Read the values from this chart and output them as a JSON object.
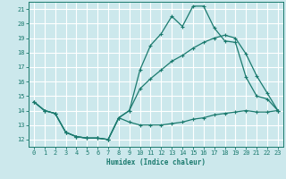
{
  "xlabel": "Humidex (Indice chaleur)",
  "bg_color": "#cce8ec",
  "grid_color": "#ffffff",
  "line_color": "#1a7a6e",
  "xlim": [
    -0.5,
    23.5
  ],
  "ylim": [
    11.5,
    21.5
  ],
  "xticks": [
    0,
    1,
    2,
    3,
    4,
    5,
    6,
    7,
    8,
    9,
    10,
    11,
    12,
    13,
    14,
    15,
    16,
    17,
    18,
    19,
    20,
    21,
    22,
    23
  ],
  "yticks": [
    12,
    13,
    14,
    15,
    16,
    17,
    18,
    19,
    20,
    21
  ],
  "line1_x": [
    0,
    1,
    2,
    3,
    4,
    5,
    6,
    7,
    8,
    9,
    10,
    11,
    12,
    13,
    14,
    15,
    16,
    17,
    18,
    19,
    20,
    21,
    22,
    23
  ],
  "line1_y": [
    14.6,
    14.0,
    13.8,
    12.5,
    12.2,
    12.1,
    12.1,
    12.0,
    13.5,
    13.2,
    13.0,
    13.0,
    13.0,
    13.1,
    13.2,
    13.4,
    13.5,
    13.7,
    13.8,
    13.9,
    14.0,
    13.9,
    13.9,
    14.0
  ],
  "line2_x": [
    0,
    1,
    2,
    3,
    4,
    5,
    6,
    7,
    8,
    9,
    10,
    11,
    12,
    13,
    14,
    15,
    16,
    17,
    18,
    19,
    20,
    21,
    22,
    23
  ],
  "line2_y": [
    14.6,
    14.0,
    13.8,
    12.5,
    12.2,
    12.1,
    12.1,
    12.0,
    13.5,
    14.0,
    16.8,
    18.5,
    19.3,
    20.5,
    19.8,
    21.2,
    21.2,
    19.7,
    18.8,
    18.7,
    16.3,
    15.0,
    14.8,
    14.0
  ],
  "line3_x": [
    0,
    1,
    2,
    3,
    4,
    5,
    6,
    7,
    8,
    9,
    10,
    11,
    12,
    13,
    14,
    15,
    16,
    17,
    18,
    19,
    20,
    21,
    22,
    23
  ],
  "line3_y": [
    14.6,
    14.0,
    13.8,
    12.5,
    12.2,
    12.1,
    12.1,
    12.0,
    13.5,
    14.0,
    15.5,
    16.2,
    16.8,
    17.4,
    17.8,
    18.3,
    18.7,
    19.0,
    19.2,
    19.0,
    17.9,
    16.4,
    15.2,
    14.0
  ]
}
